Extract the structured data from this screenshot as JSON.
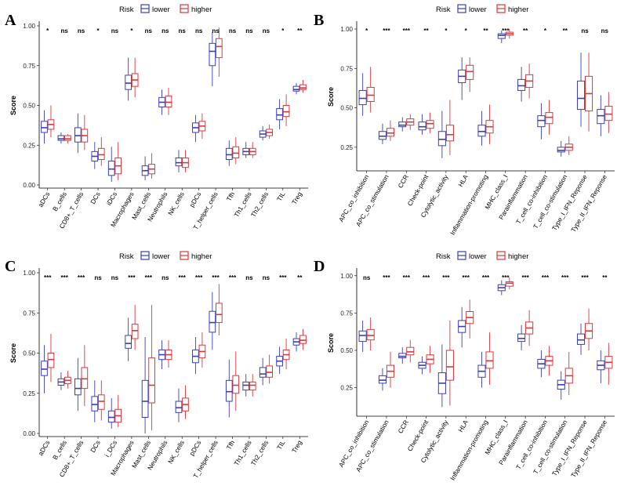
{
  "colors": {
    "lower": "#3a3fb5",
    "higher": "#d6393d"
  },
  "chart_data": [
    {
      "panel": "A",
      "type": "boxplot",
      "ylabel": "Score",
      "ylim": [
        0.0,
        1.0
      ],
      "yticks": [
        "0.00",
        "0.25",
        "0.50",
        "0.75",
        "1.00"
      ],
      "legend": {
        "title": "Risk",
        "entries": [
          "lower",
          "higher"
        ]
      },
      "categories": [
        "aDCs",
        "B_cells",
        "CD8+_T_cells",
        "DCs",
        "iDCs",
        "Macrophages",
        "Mast_cells",
        "Neutrophils",
        "NK_cells",
        "pDCs",
        "T_helper_cells",
        "Tfh",
        "Th1_cells",
        "Th2_cells",
        "TIL",
        "Treg"
      ],
      "significance": [
        "*",
        "ns",
        "ns",
        "*",
        "ns",
        "*",
        "ns",
        "ns",
        "ns",
        "ns",
        "ns",
        "ns",
        "ns",
        "ns",
        "*",
        "**"
      ],
      "series": [
        {
          "name": "lower",
          "boxes": [
            [
              0.26,
              0.33,
              0.36,
              0.4,
              0.47
            ],
            [
              0.26,
              0.28,
              0.29,
              0.31,
              0.33
            ],
            [
              0.2,
              0.27,
              0.31,
              0.36,
              0.45
            ],
            [
              0.1,
              0.15,
              0.18,
              0.21,
              0.27
            ],
            [
              0.02,
              0.06,
              0.1,
              0.15,
              0.24
            ],
            [
              0.53,
              0.6,
              0.64,
              0.69,
              0.8
            ],
            [
              0.03,
              0.06,
              0.09,
              0.12,
              0.18
            ],
            [
              0.44,
              0.49,
              0.52,
              0.55,
              0.6
            ],
            [
              0.08,
              0.12,
              0.14,
              0.17,
              0.22
            ],
            [
              0.27,
              0.33,
              0.36,
              0.39,
              0.44
            ],
            [
              0.62,
              0.75,
              0.84,
              0.89,
              0.96
            ],
            [
              0.12,
              0.16,
              0.19,
              0.23,
              0.28
            ],
            [
              0.17,
              0.19,
              0.21,
              0.23,
              0.27
            ],
            [
              0.28,
              0.3,
              0.32,
              0.34,
              0.37
            ],
            [
              0.35,
              0.41,
              0.44,
              0.48,
              0.54
            ],
            [
              0.57,
              0.59,
              0.6,
              0.62,
              0.64
            ]
          ]
        },
        {
          "name": "higher",
          "boxes": [
            [
              0.3,
              0.35,
              0.38,
              0.41,
              0.5
            ],
            [
              0.26,
              0.28,
              0.29,
              0.31,
              0.32
            ],
            [
              0.22,
              0.27,
              0.31,
              0.35,
              0.44
            ],
            [
              0.12,
              0.16,
              0.19,
              0.23,
              0.3
            ],
            [
              0.03,
              0.07,
              0.12,
              0.17,
              0.27
            ],
            [
              0.55,
              0.62,
              0.66,
              0.7,
              0.8
            ],
            [
              0.04,
              0.07,
              0.1,
              0.13,
              0.2
            ],
            [
              0.44,
              0.49,
              0.52,
              0.56,
              0.61
            ],
            [
              0.08,
              0.11,
              0.14,
              0.17,
              0.22
            ],
            [
              0.29,
              0.34,
              0.37,
              0.4,
              0.45
            ],
            [
              0.68,
              0.8,
              0.87,
              0.92,
              0.99
            ],
            [
              0.13,
              0.17,
              0.2,
              0.24,
              0.3
            ],
            [
              0.17,
              0.19,
              0.21,
              0.23,
              0.27
            ],
            [
              0.29,
              0.31,
              0.33,
              0.35,
              0.38
            ],
            [
              0.37,
              0.43,
              0.46,
              0.5,
              0.57
            ],
            [
              0.58,
              0.6,
              0.61,
              0.63,
              0.66
            ]
          ]
        }
      ]
    },
    {
      "panel": "B",
      "type": "boxplot",
      "ylabel": "Score",
      "ylim": [
        0.12,
        1.02
      ],
      "yticks": [
        "0.25",
        "0.50",
        "0.75",
        "1.00"
      ],
      "legend": {
        "title": "Risk",
        "entries": [
          "lower",
          "higher"
        ]
      },
      "categories": [
        "APC_co_inhibition",
        "APC_co_stimulation",
        "CCR",
        "Check-point",
        "Cytolytic_activity",
        "HLA",
        "Inflammation-promoting",
        "MHC_class_I",
        "Parainflammation",
        "T_cell_co-inhibition",
        "T_cell_co-stimulation",
        "Type_I_IFN_Reponse",
        "Type_II_IFN_Reponse"
      ],
      "significance": [
        "*",
        "***",
        "***",
        "**",
        "*",
        "*",
        "**",
        "***",
        "**",
        "*",
        "**",
        "ns",
        "ns"
      ],
      "series": [
        {
          "name": "lower",
          "boxes": [
            [
              0.45,
              0.52,
              0.56,
              0.61,
              0.72
            ],
            [
              0.27,
              0.3,
              0.32,
              0.35,
              0.4
            ],
            [
              0.35,
              0.38,
              0.39,
              0.41,
              0.44
            ],
            [
              0.33,
              0.36,
              0.38,
              0.41,
              0.46
            ],
            [
              0.18,
              0.26,
              0.3,
              0.35,
              0.48
            ],
            [
              0.55,
              0.66,
              0.7,
              0.74,
              0.82
            ],
            [
              0.26,
              0.32,
              0.35,
              0.39,
              0.48
            ],
            [
              0.91,
              0.94,
              0.96,
              0.97,
              0.99
            ],
            [
              0.54,
              0.61,
              0.64,
              0.68,
              0.76
            ],
            [
              0.3,
              0.38,
              0.42,
              0.45,
              0.53
            ],
            [
              0.19,
              0.22,
              0.23,
              0.25,
              0.29
            ],
            [
              0.38,
              0.49,
              0.56,
              0.67,
              0.85
            ],
            [
              0.32,
              0.4,
              0.45,
              0.49,
              0.58
            ]
          ]
        },
        {
          "name": "higher",
          "boxes": [
            [
              0.47,
              0.54,
              0.58,
              0.63,
              0.76
            ],
            [
              0.29,
              0.32,
              0.34,
              0.37,
              0.42
            ],
            [
              0.36,
              0.39,
              0.41,
              0.43,
              0.46
            ],
            [
              0.34,
              0.37,
              0.4,
              0.42,
              0.47
            ],
            [
              0.2,
              0.29,
              0.33,
              0.39,
              0.55
            ],
            [
              0.6,
              0.68,
              0.73,
              0.77,
              0.82
            ],
            [
              0.27,
              0.34,
              0.38,
              0.42,
              0.52
            ],
            [
              0.94,
              0.96,
              0.97,
              0.98,
              1.0
            ],
            [
              0.56,
              0.63,
              0.67,
              0.71,
              0.78
            ],
            [
              0.33,
              0.4,
              0.44,
              0.47,
              0.55
            ],
            [
              0.2,
              0.23,
              0.25,
              0.27,
              0.32
            ],
            [
              0.35,
              0.48,
              0.59,
              0.7,
              0.85
            ],
            [
              0.34,
              0.42,
              0.46,
              0.51,
              0.6
            ]
          ]
        }
      ]
    },
    {
      "panel": "C",
      "type": "boxplot",
      "ylabel": "Score",
      "ylim": [
        0.0,
        1.0
      ],
      "yticks": [
        "0.00",
        "0.25",
        "0.50",
        "0.75",
        "1.00"
      ],
      "legend": {
        "title": "Risk",
        "entries": [
          "lower",
          "higher"
        ]
      },
      "categories": [
        "aDCs",
        "B_cells",
        "CD8+_T_cells",
        "DCs",
        "i_DCs",
        "Macrophages",
        "Mast_cells",
        "Neutrophils",
        "NK_cells",
        "pDCs",
        "T_helper_cells",
        "Tfh",
        "Th1_cells",
        "Th2_cells",
        "TIL",
        "Treg"
      ],
      "significance": [
        "***",
        "***",
        "***",
        "ns",
        "ns",
        "***",
        "***",
        "ns",
        "***",
        "***",
        "***",
        "***",
        "ns",
        "ns",
        "***",
        "**"
      ],
      "series": [
        {
          "name": "lower",
          "boxes": [
            [
              0.25,
              0.36,
              0.4,
              0.45,
              0.55
            ],
            [
              0.27,
              0.3,
              0.32,
              0.34,
              0.38
            ],
            [
              0.14,
              0.24,
              0.28,
              0.34,
              0.47
            ],
            [
              0.07,
              0.14,
              0.18,
              0.23,
              0.33
            ],
            [
              0.03,
              0.07,
              0.1,
              0.14,
              0.22
            ],
            [
              0.45,
              0.53,
              0.56,
              0.61,
              0.72
            ],
            [
              0.0,
              0.1,
              0.2,
              0.33,
              0.6
            ],
            [
              0.4,
              0.46,
              0.49,
              0.52,
              0.58
            ],
            [
              0.07,
              0.13,
              0.16,
              0.2,
              0.28
            ],
            [
              0.37,
              0.44,
              0.48,
              0.52,
              0.6
            ],
            [
              0.52,
              0.63,
              0.69,
              0.76,
              0.88
            ],
            [
              0.1,
              0.2,
              0.26,
              0.33,
              0.46
            ],
            [
              0.23,
              0.27,
              0.3,
              0.32,
              0.37
            ],
            [
              0.3,
              0.35,
              0.37,
              0.41,
              0.47
            ],
            [
              0.37,
              0.42,
              0.45,
              0.48,
              0.54
            ],
            [
              0.51,
              0.55,
              0.57,
              0.59,
              0.63
            ]
          ]
        },
        {
          "name": "higher",
          "boxes": [
            [
              0.32,
              0.41,
              0.46,
              0.5,
              0.62
            ],
            [
              0.28,
              0.31,
              0.33,
              0.35,
              0.39
            ],
            [
              0.17,
              0.28,
              0.34,
              0.41,
              0.55
            ],
            [
              0.08,
              0.15,
              0.2,
              0.24,
              0.33
            ],
            [
              0.04,
              0.07,
              0.11,
              0.15,
              0.24
            ],
            [
              0.52,
              0.59,
              0.64,
              0.68,
              0.8
            ],
            [
              0.02,
              0.19,
              0.3,
              0.47,
              0.8
            ],
            [
              0.41,
              0.46,
              0.49,
              0.52,
              0.58
            ],
            [
              0.09,
              0.14,
              0.18,
              0.22,
              0.3
            ],
            [
              0.41,
              0.47,
              0.51,
              0.55,
              0.63
            ],
            [
              0.61,
              0.69,
              0.74,
              0.81,
              0.93
            ],
            [
              0.14,
              0.25,
              0.3,
              0.36,
              0.51
            ],
            [
              0.23,
              0.27,
              0.3,
              0.32,
              0.37
            ],
            [
              0.31,
              0.35,
              0.38,
              0.42,
              0.49
            ],
            [
              0.4,
              0.46,
              0.49,
              0.52,
              0.59
            ],
            [
              0.52,
              0.56,
              0.58,
              0.61,
              0.65
            ]
          ]
        }
      ]
    },
    {
      "panel": "D",
      "type": "boxplot",
      "ylabel": "Score",
      "ylim": [
        0.08,
        1.02
      ],
      "yticks": [
        "0.25",
        "0.50",
        "0.75",
        "1.00"
      ],
      "legend": {
        "title": "Risk",
        "entries": [
          "lower",
          "higher"
        ]
      },
      "categories": [
        "APC_co_inhibition",
        "APC_co_stimulation",
        "CCR",
        "Check-point",
        "Cytolytic_activity",
        "HLA",
        "Inflammation-promoting",
        "MHC_class_I",
        "Parainflammation",
        "T_cell_co-inhibition",
        "T_cell_co-stimulation",
        "Type_I_IFN_Reponse",
        "Type_II_IFN_Reponse"
      ],
      "significance": [
        "ns",
        "***",
        "***",
        "***",
        "***",
        "***",
        "***",
        "***",
        "***",
        "***",
        "***",
        "***",
        "**"
      ],
      "series": [
        {
          "name": "lower",
          "boxes": [
            [
              0.49,
              0.56,
              0.6,
              0.63,
              0.7
            ],
            [
              0.23,
              0.28,
              0.3,
              0.33,
              0.38
            ],
            [
              0.41,
              0.45,
              0.46,
              0.48,
              0.52
            ],
            [
              0.34,
              0.38,
              0.4,
              0.42,
              0.46
            ],
            [
              0.12,
              0.21,
              0.28,
              0.35,
              0.54
            ],
            [
              0.52,
              0.62,
              0.66,
              0.7,
              0.79
            ],
            [
              0.25,
              0.32,
              0.36,
              0.4,
              0.49
            ],
            [
              0.87,
              0.9,
              0.92,
              0.94,
              0.97
            ],
            [
              0.5,
              0.56,
              0.58,
              0.61,
              0.67
            ],
            [
              0.32,
              0.38,
              0.41,
              0.44,
              0.5
            ],
            [
              0.17,
              0.24,
              0.27,
              0.3,
              0.36
            ],
            [
              0.47,
              0.54,
              0.57,
              0.61,
              0.68
            ],
            [
              0.28,
              0.37,
              0.4,
              0.43,
              0.5
            ]
          ]
        },
        {
          "name": "higher",
          "boxes": [
            [
              0.5,
              0.57,
              0.6,
              0.64,
              0.72
            ],
            [
              0.25,
              0.32,
              0.36,
              0.4,
              0.49
            ],
            [
              0.42,
              0.47,
              0.49,
              0.52,
              0.57
            ],
            [
              0.35,
              0.41,
              0.44,
              0.47,
              0.53
            ],
            [
              0.13,
              0.3,
              0.39,
              0.5,
              0.7
            ],
            [
              0.58,
              0.68,
              0.72,
              0.76,
              0.84
            ],
            [
              0.27,
              0.38,
              0.43,
              0.49,
              0.62
            ],
            [
              0.91,
              0.93,
              0.95,
              0.96,
              0.99
            ],
            [
              0.53,
              0.61,
              0.65,
              0.69,
              0.77
            ],
            [
              0.33,
              0.4,
              0.43,
              0.46,
              0.53
            ],
            [
              0.2,
              0.28,
              0.33,
              0.38,
              0.49
            ],
            [
              0.5,
              0.58,
              0.63,
              0.68,
              0.78
            ],
            [
              0.27,
              0.38,
              0.42,
              0.46,
              0.55
            ]
          ]
        }
      ]
    }
  ]
}
